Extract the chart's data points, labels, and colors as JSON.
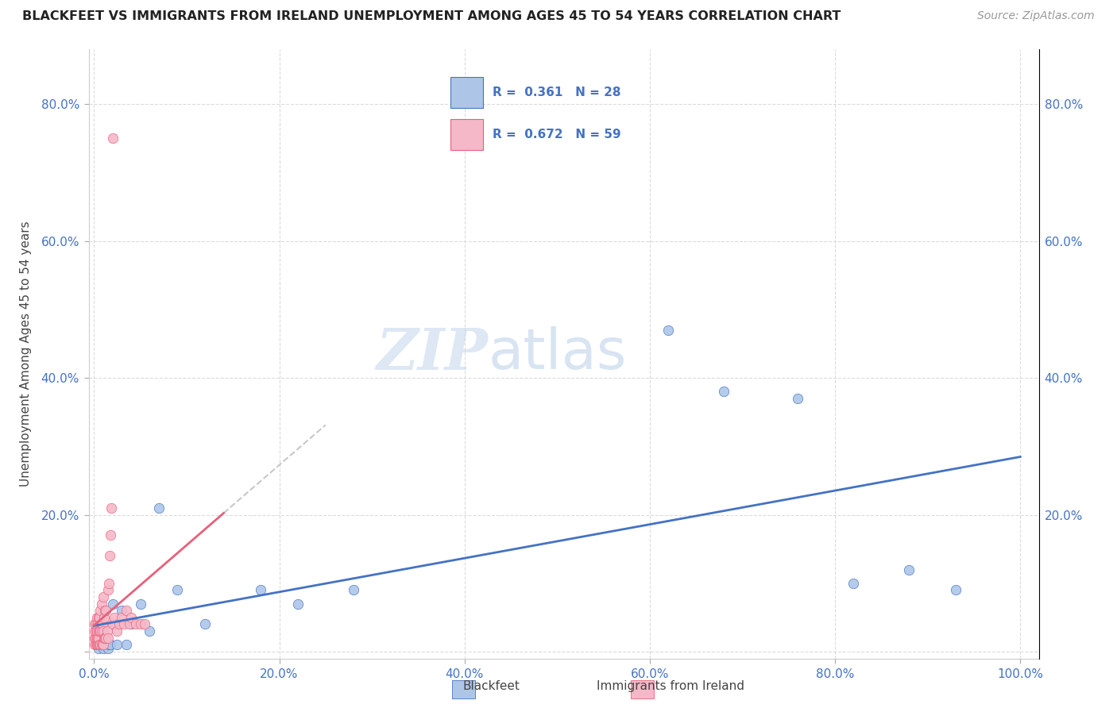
{
  "title": "BLACKFEET VS IMMIGRANTS FROM IRELAND UNEMPLOYMENT AMONG AGES 45 TO 54 YEARS CORRELATION CHART",
  "source": "Source: ZipAtlas.com",
  "ylabel": "Unemployment Among Ages 45 to 54 years",
  "xlim": [
    -0.005,
    1.02
  ],
  "ylim": [
    -0.01,
    0.88
  ],
  "xtick_vals": [
    0.0,
    0.2,
    0.4,
    0.6,
    0.8,
    1.0
  ],
  "xtick_labels": [
    "0.0%",
    "20.0%",
    "40.0%",
    "60.0%",
    "80.0%",
    "100.0%"
  ],
  "ytick_vals": [
    0.0,
    0.2,
    0.4,
    0.6,
    0.8
  ],
  "ytick_labels": [
    "",
    "20.0%",
    "40.0%",
    "60.0%",
    "80.0%"
  ],
  "watermark_zip": "ZIP",
  "watermark_atlas": "atlas",
  "blackfeet_color": "#adc6e8",
  "ireland_color": "#f5b8c8",
  "trendline_blue_color": "#4472c4",
  "trendline_pink_color": "#e8607a",
  "trendline_gray_color": "#c8c8c8",
  "legend_R_bf": "R = 0.361",
  "legend_N_bf": "N = 28",
  "legend_R_ire": "R = 0.672",
  "legend_N_ire": "N = 59",
  "bf_x": [
    0.005,
    0.007,
    0.008,
    0.01,
    0.012,
    0.015,
    0.016,
    0.018,
    0.02,
    0.022,
    0.025,
    0.03,
    0.035,
    0.04,
    0.05,
    0.06,
    0.07,
    0.09,
    0.12,
    0.18,
    0.22,
    0.28,
    0.62,
    0.68,
    0.76,
    0.82,
    0.88,
    0.93
  ],
  "bf_y": [
    0.005,
    0.01,
    0.03,
    0.005,
    0.02,
    0.005,
    0.01,
    0.01,
    0.07,
    0.04,
    0.01,
    0.06,
    0.01,
    0.04,
    0.07,
    0.03,
    0.21,
    0.09,
    0.04,
    0.09,
    0.07,
    0.09,
    0.47,
    0.38,
    0.37,
    0.1,
    0.12,
    0.09
  ],
  "ire_x": [
    0.001,
    0.001,
    0.001,
    0.001,
    0.001,
    0.002,
    0.002,
    0.002,
    0.002,
    0.003,
    0.003,
    0.003,
    0.003,
    0.004,
    0.004,
    0.004,
    0.005,
    0.005,
    0.005,
    0.005,
    0.006,
    0.006,
    0.006,
    0.007,
    0.007,
    0.007,
    0.008,
    0.008,
    0.008,
    0.009,
    0.009,
    0.01,
    0.01,
    0.01,
    0.011,
    0.011,
    0.012,
    0.012,
    0.013,
    0.013,
    0.014,
    0.015,
    0.015,
    0.016,
    0.017,
    0.018,
    0.019,
    0.02,
    0.022,
    0.025,
    0.027,
    0.03,
    0.032,
    0.035,
    0.038,
    0.04,
    0.045,
    0.05,
    0.055
  ],
  "ire_y": [
    0.01,
    0.02,
    0.02,
    0.03,
    0.04,
    0.01,
    0.02,
    0.03,
    0.04,
    0.01,
    0.02,
    0.03,
    0.05,
    0.01,
    0.02,
    0.04,
    0.01,
    0.02,
    0.03,
    0.05,
    0.01,
    0.03,
    0.05,
    0.01,
    0.03,
    0.06,
    0.01,
    0.03,
    0.07,
    0.01,
    0.04,
    0.01,
    0.03,
    0.08,
    0.02,
    0.05,
    0.02,
    0.06,
    0.02,
    0.06,
    0.03,
    0.02,
    0.09,
    0.1,
    0.14,
    0.17,
    0.21,
    0.04,
    0.05,
    0.03,
    0.04,
    0.05,
    0.04,
    0.06,
    0.04,
    0.05,
    0.04,
    0.04,
    0.04
  ],
  "ire_outlier_x": [
    0.02
  ],
  "ire_outlier_y": [
    0.75
  ]
}
